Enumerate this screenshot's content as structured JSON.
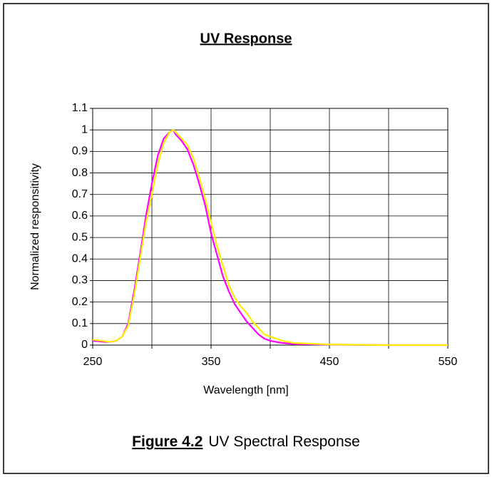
{
  "chart_data": {
    "type": "line",
    "title": "UV Response",
    "xlabel": "Wavelength [nm]",
    "ylabel": "Normalized responsitivity",
    "x": [
      250,
      260,
      265,
      270,
      275,
      280,
      285,
      290,
      295,
      300,
      305,
      310,
      315,
      318,
      320,
      325,
      330,
      335,
      340,
      345,
      350,
      355,
      360,
      365,
      370,
      375,
      380,
      385,
      390,
      395,
      400,
      410,
      420,
      450,
      500,
      550
    ],
    "series": [
      {
        "color": "#ff00ff",
        "values": [
          0.02,
          0.015,
          0.015,
          0.02,
          0.04,
          0.1,
          0.25,
          0.42,
          0.6,
          0.75,
          0.88,
          0.96,
          0.99,
          1.0,
          0.98,
          0.95,
          0.91,
          0.84,
          0.75,
          0.65,
          0.52,
          0.42,
          0.32,
          0.25,
          0.19,
          0.15,
          0.11,
          0.08,
          0.05,
          0.03,
          0.02,
          0.01,
          0.005,
          0.002,
          0,
          0
        ]
      },
      {
        "color": "#ffee00",
        "values": [
          0.025,
          0.018,
          0.015,
          0.02,
          0.04,
          0.09,
          0.23,
          0.4,
          0.57,
          0.7,
          0.84,
          0.94,
          0.99,
          1.0,
          0.99,
          0.96,
          0.93,
          0.87,
          0.78,
          0.68,
          0.57,
          0.46,
          0.37,
          0.28,
          0.22,
          0.18,
          0.15,
          0.11,
          0.08,
          0.05,
          0.04,
          0.02,
          0.01,
          0.003,
          0,
          0
        ]
      }
    ],
    "xlim": [
      250,
      550
    ],
    "xticks": [
      250,
      350,
      450,
      550
    ],
    "xminor": [
      300,
      400,
      500
    ],
    "ylim": [
      0,
      1.1
    ],
    "yticks": [
      0,
      0.1,
      0.2,
      0.3,
      0.4,
      0.5,
      0.6,
      0.7,
      0.8,
      0.9,
      1,
      1.1
    ],
    "grid": true,
    "caption": {
      "label": "Figure 4.2",
      "text": "UV Spectral Response"
    }
  }
}
